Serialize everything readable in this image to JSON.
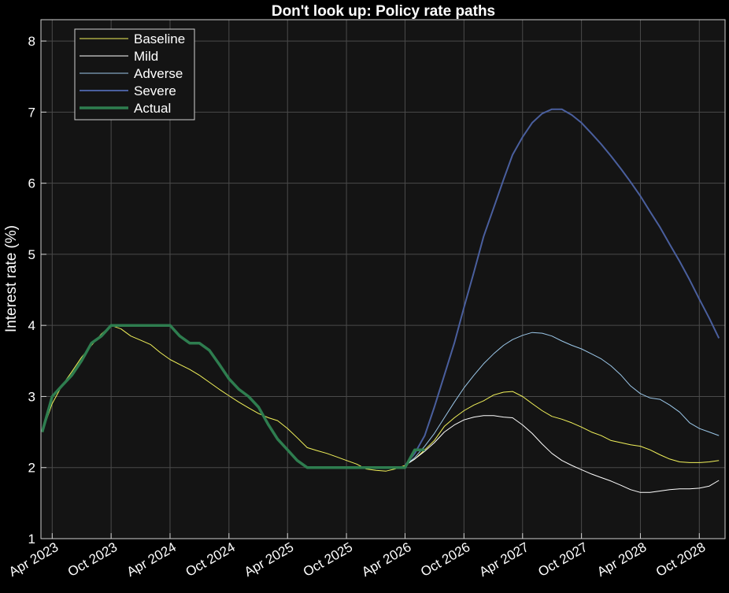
{
  "chart_data": {
    "type": "line",
    "title": "Don't look up: Policy rate paths",
    "xlabel": "",
    "ylabel": "Interest rate (%)",
    "ylim": [
      1,
      8.3
    ],
    "xlim": [
      "2023-02-25",
      "2028-12-20"
    ],
    "x_tick_dates": [
      "2023-04-01",
      "2023-10-01",
      "2024-04-01",
      "2024-10-01",
      "2025-04-01",
      "2025-10-01",
      "2026-04-01",
      "2026-10-01",
      "2027-04-01",
      "2027-10-01",
      "2028-04-01",
      "2028-10-01"
    ],
    "x_tick_labels": [
      "Apr 2023",
      "Oct 2023",
      "Apr 2024",
      "Oct 2024",
      "Apr 2025",
      "Oct 2025",
      "Apr 2026",
      "Oct 2026",
      "Apr 2027",
      "Oct 2027",
      "Apr 2028",
      "Oct 2028"
    ],
    "y_ticks": [
      1,
      2,
      3,
      4,
      5,
      6,
      7,
      8
    ],
    "grid": true,
    "legend_position": "top-left",
    "background": "#141414",
    "series": [
      {
        "name": "Baseline",
        "color": "#f2f25a",
        "width": 1,
        "x": [
          "2023-03-01",
          "2023-04-01",
          "2023-05-01",
          "2023-06-01",
          "2023-07-01",
          "2023-08-01",
          "2023-09-01",
          "2023-10-01",
          "2023-11-01",
          "2023-12-01",
          "2024-01-01",
          "2024-02-01",
          "2024-03-01",
          "2024-04-01",
          "2024-05-01",
          "2024-06-01",
          "2024-07-01",
          "2024-08-01",
          "2024-09-01",
          "2024-10-01",
          "2024-11-01",
          "2024-12-01",
          "2025-01-01",
          "2025-02-01",
          "2025-03-01",
          "2025-04-01",
          "2025-05-01",
          "2025-06-01",
          "2025-07-01",
          "2025-08-01",
          "2025-09-01",
          "2025-10-01",
          "2025-11-01",
          "2025-12-01",
          "2026-01-01",
          "2026-02-01",
          "2026-03-01",
          "2026-04-01",
          "2026-05-01",
          "2026-06-01",
          "2026-07-01",
          "2026-08-01",
          "2026-09-01",
          "2026-10-01",
          "2026-11-01",
          "2026-12-01",
          "2027-01-01",
          "2027-02-01",
          "2027-03-01",
          "2027-04-01",
          "2027-05-01",
          "2027-06-01",
          "2027-07-01",
          "2027-08-01",
          "2027-09-01",
          "2027-10-01",
          "2027-11-01",
          "2027-12-01",
          "2028-01-01",
          "2028-02-01",
          "2028-03-01",
          "2028-04-01",
          "2028-05-01",
          "2028-06-01",
          "2028-07-01",
          "2028-08-01",
          "2028-09-01",
          "2028-10-01",
          "2028-11-01",
          "2028-12-01"
        ],
        "y": [
          2.5,
          2.9,
          3.15,
          3.35,
          3.55,
          3.72,
          3.88,
          4.0,
          3.95,
          3.85,
          3.79,
          3.73,
          3.62,
          3.52,
          3.45,
          3.38,
          3.3,
          3.2,
          3.1,
          3.01,
          2.92,
          2.84,
          2.76,
          2.7,
          2.66,
          2.55,
          2.42,
          2.28,
          2.24,
          2.2,
          2.15,
          2.1,
          2.05,
          1.98,
          1.96,
          1.95,
          1.98,
          2.03,
          2.12,
          2.25,
          2.38,
          2.58,
          2.7,
          2.8,
          2.88,
          2.94,
          3.02,
          3.06,
          3.07,
          3.0,
          2.9,
          2.8,
          2.72,
          2.68,
          2.63,
          2.57,
          2.5,
          2.45,
          2.38,
          2.35,
          2.32,
          2.3,
          2.25,
          2.18,
          2.12,
          2.08,
          2.07,
          2.07,
          2.08,
          2.1
        ]
      },
      {
        "name": "Mild",
        "color": "#ffffff",
        "width": 1,
        "x": [
          "2026-04-01",
          "2026-05-01",
          "2026-06-01",
          "2026-07-01",
          "2026-08-01",
          "2026-09-01",
          "2026-10-01",
          "2026-11-01",
          "2026-12-01",
          "2027-01-01",
          "2027-02-01",
          "2027-03-01",
          "2027-04-01",
          "2027-05-01",
          "2027-06-01",
          "2027-07-01",
          "2027-08-01",
          "2027-09-01",
          "2027-10-01",
          "2027-11-01",
          "2027-12-01",
          "2028-01-01",
          "2028-02-01",
          "2028-03-01",
          "2028-04-01",
          "2028-05-01",
          "2028-06-01",
          "2028-07-01",
          "2028-08-01",
          "2028-09-01",
          "2028-10-01",
          "2028-11-01",
          "2028-12-01"
        ],
        "y": [
          2.03,
          2.12,
          2.23,
          2.35,
          2.5,
          2.6,
          2.67,
          2.71,
          2.73,
          2.73,
          2.71,
          2.7,
          2.6,
          2.48,
          2.33,
          2.2,
          2.1,
          2.03,
          1.97,
          1.91,
          1.86,
          1.81,
          1.75,
          1.69,
          1.65,
          1.65,
          1.67,
          1.69,
          1.7,
          1.7,
          1.71,
          1.74,
          1.82
        ]
      },
      {
        "name": "Adverse",
        "color": "#9cc8ea",
        "width": 1,
        "x": [
          "2026-04-01",
          "2026-05-01",
          "2026-06-01",
          "2026-07-01",
          "2026-08-01",
          "2026-09-01",
          "2026-10-01",
          "2026-11-01",
          "2026-12-01",
          "2027-01-01",
          "2027-02-01",
          "2027-03-01",
          "2027-04-01",
          "2027-05-01",
          "2027-06-01",
          "2027-07-01",
          "2027-08-01",
          "2027-09-01",
          "2027-10-01",
          "2027-11-01",
          "2027-12-01",
          "2028-01-01",
          "2028-02-01",
          "2028-03-01",
          "2028-04-01",
          "2028-05-01",
          "2028-06-01",
          "2028-07-01",
          "2028-08-01",
          "2028-09-01",
          "2028-10-01",
          "2028-11-01",
          "2028-12-01"
        ],
        "y": [
          2.03,
          2.14,
          2.3,
          2.48,
          2.7,
          2.92,
          3.12,
          3.3,
          3.46,
          3.6,
          3.72,
          3.8,
          3.86,
          3.9,
          3.89,
          3.85,
          3.78,
          3.72,
          3.67,
          3.6,
          3.53,
          3.43,
          3.3,
          3.15,
          3.04,
          2.98,
          2.96,
          2.88,
          2.78,
          2.63,
          2.55,
          2.5,
          2.45
        ]
      },
      {
        "name": "Severe",
        "color": "#4a5f9e",
        "width": 2,
        "x": [
          "2026-04-01",
          "2026-05-01",
          "2026-06-01",
          "2026-07-01",
          "2026-08-01",
          "2026-09-01",
          "2026-10-01",
          "2026-11-01",
          "2026-12-01",
          "2027-01-01",
          "2027-02-01",
          "2027-03-01",
          "2027-04-01",
          "2027-05-01",
          "2027-06-01",
          "2027-07-01",
          "2027-08-01",
          "2027-09-01",
          "2027-10-01",
          "2027-11-01",
          "2027-12-01",
          "2028-01-01",
          "2028-02-01",
          "2028-03-01",
          "2028-04-01",
          "2028-05-01",
          "2028-06-01",
          "2028-07-01",
          "2028-08-01",
          "2028-09-01",
          "2028-10-01",
          "2028-11-01",
          "2028-12-01"
        ],
        "y": [
          2.03,
          2.2,
          2.45,
          2.85,
          3.3,
          3.75,
          4.25,
          4.75,
          5.25,
          5.65,
          6.05,
          6.4,
          6.65,
          6.85,
          6.98,
          7.04,
          7.04,
          6.96,
          6.85,
          6.7,
          6.55,
          6.38,
          6.2,
          6.02,
          5.82,
          5.6,
          5.38,
          5.14,
          4.9,
          4.64,
          4.37,
          4.1,
          3.82
        ]
      },
      {
        "name": "Actual",
        "color": "#2e7d4f",
        "width": 3.5,
        "x": [
          "2023-03-01",
          "2023-04-01",
          "2023-05-01",
          "2023-06-01",
          "2023-07-01",
          "2023-08-01",
          "2023-09-01",
          "2023-10-01",
          "2023-11-01",
          "2023-12-01",
          "2024-01-01",
          "2024-02-01",
          "2024-03-01",
          "2024-04-01",
          "2024-05-01",
          "2024-06-01",
          "2024-07-01",
          "2024-08-01",
          "2024-09-01",
          "2024-10-01",
          "2024-11-01",
          "2024-12-01",
          "2025-01-01",
          "2025-02-01",
          "2025-03-01",
          "2025-04-01",
          "2025-05-01",
          "2025-06-01",
          "2025-07-01",
          "2025-08-01",
          "2025-09-01",
          "2025-10-01",
          "2025-11-01",
          "2025-12-01",
          "2026-01-01",
          "2026-02-01",
          "2026-03-01",
          "2026-04-01",
          "2026-05-01",
          "2026-06-01"
        ],
        "y": [
          2.5,
          3.0,
          3.15,
          3.3,
          3.5,
          3.75,
          3.85,
          4.0,
          4.0,
          4.0,
          4.0,
          4.0,
          4.0,
          4.0,
          3.85,
          3.75,
          3.75,
          3.65,
          3.45,
          3.25,
          3.1,
          3.0,
          2.85,
          2.6,
          2.4,
          2.25,
          2.1,
          2.0,
          2.0,
          2.0,
          2.0,
          2.0,
          2.0,
          2.0,
          2.0,
          2.0,
          2.0,
          2.0,
          2.25,
          2.25
        ]
      }
    ]
  }
}
